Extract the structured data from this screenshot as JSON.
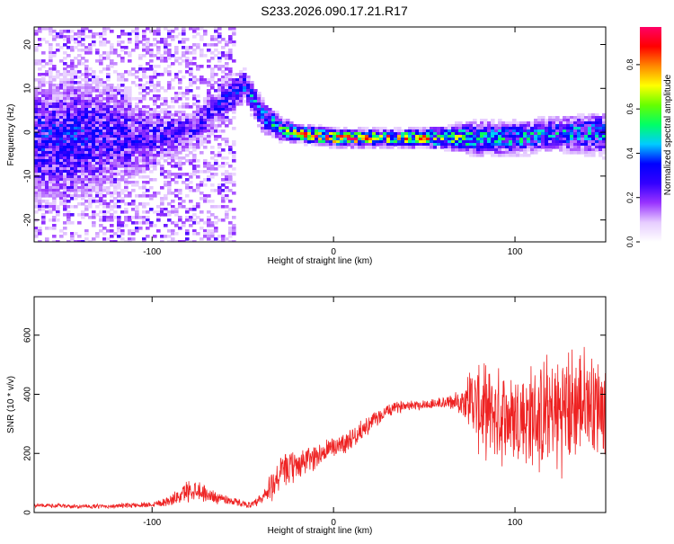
{
  "figure": {
    "title": "S233.2026.090.17.21.R17"
  },
  "chart_data": [
    {
      "type": "heatmap",
      "title": "S233.2026.090.17.21.R17",
      "xlabel": "Height of straight line (km)",
      "ylabel": "Frequency (Hz)",
      "xlim": [
        -165,
        150
      ],
      "ylim": [
        -25,
        24
      ],
      "xticks": [
        -100,
        0,
        100
      ],
      "yticks": [
        20,
        10,
        0,
        -10,
        -20
      ],
      "colorbar": {
        "label": "Normalized spectral amplitude",
        "range": [
          0.0,
          0.97
        ],
        "ticks": [
          0.0,
          0.2,
          0.4,
          0.6,
          0.8
        ],
        "colors": [
          "#ffffff",
          "#e6ccff",
          "#9933ff",
          "#3300ff",
          "#0000ff",
          "#00ccff",
          "#00ff66",
          "#66ff00",
          "#ffff00",
          "#ff8800",
          "#ff0000",
          "#ff0066"
        ]
      },
      "ridge": {
        "x": [
          -165,
          -140,
          -120,
          -100,
          -80,
          -70,
          -60,
          -50,
          -40,
          -30,
          -20,
          -10,
          0,
          10,
          20,
          40,
          60,
          80,
          100,
          120,
          150
        ],
        "freq": [
          -2,
          -1,
          -1,
          -1,
          1,
          4,
          8,
          11,
          4,
          1,
          0,
          -0.5,
          -1,
          -1,
          -1,
          -1,
          -1,
          -1,
          -1,
          0,
          0
        ],
        "amplitude": [
          0.35,
          0.35,
          0.3,
          0.3,
          0.3,
          0.3,
          0.35,
          0.4,
          0.45,
          0.55,
          0.8,
          0.9,
          0.9,
          0.9,
          0.85,
          0.8,
          0.7,
          0.55,
          0.5,
          0.45,
          0.45
        ],
        "spread_hz": [
          12,
          12,
          10,
          6,
          4,
          4,
          4,
          3,
          3,
          2,
          1.5,
          1.5,
          1.5,
          1.5,
          1.5,
          1.5,
          2,
          3,
          3,
          3,
          4
        ]
      }
    },
    {
      "type": "line",
      "xlabel": "Height of straight line (km)",
      "ylabel": "SNR (10 * v/v)",
      "xlim": [
        -165,
        150
      ],
      "ylim": [
        0,
        730
      ],
      "xticks": [
        -100,
        0,
        100
      ],
      "yticks": [
        0,
        200,
        400,
        600
      ],
      "series": [
        {
          "name": "SNR",
          "color": "#ee2222",
          "x": [
            -165,
            -140,
            -120,
            -100,
            -90,
            -85,
            -80,
            -75,
            -70,
            -60,
            -50,
            -45,
            -40,
            -35,
            -30,
            -20,
            -10,
            0,
            10,
            20,
            30,
            40,
            50,
            60,
            70,
            75,
            80,
            90,
            100,
            110,
            120,
            130,
            140,
            150
          ],
          "mean": [
            25,
            20,
            22,
            28,
            40,
            55,
            75,
            80,
            60,
            45,
            30,
            25,
            40,
            80,
            130,
            160,
            190,
            220,
            250,
            300,
            345,
            365,
            365,
            370,
            375,
            390,
            350,
            330,
            320,
            320,
            330,
            350,
            380,
            360
          ],
          "amplitude": [
            8,
            8,
            8,
            12,
            20,
            30,
            45,
            40,
            30,
            20,
            12,
            12,
            30,
            60,
            70,
            60,
            50,
            45,
            40,
            35,
            25,
            20,
            20,
            25,
            40,
            120,
            170,
            180,
            190,
            210,
            230,
            240,
            200,
            180
          ]
        }
      ]
    }
  ]
}
